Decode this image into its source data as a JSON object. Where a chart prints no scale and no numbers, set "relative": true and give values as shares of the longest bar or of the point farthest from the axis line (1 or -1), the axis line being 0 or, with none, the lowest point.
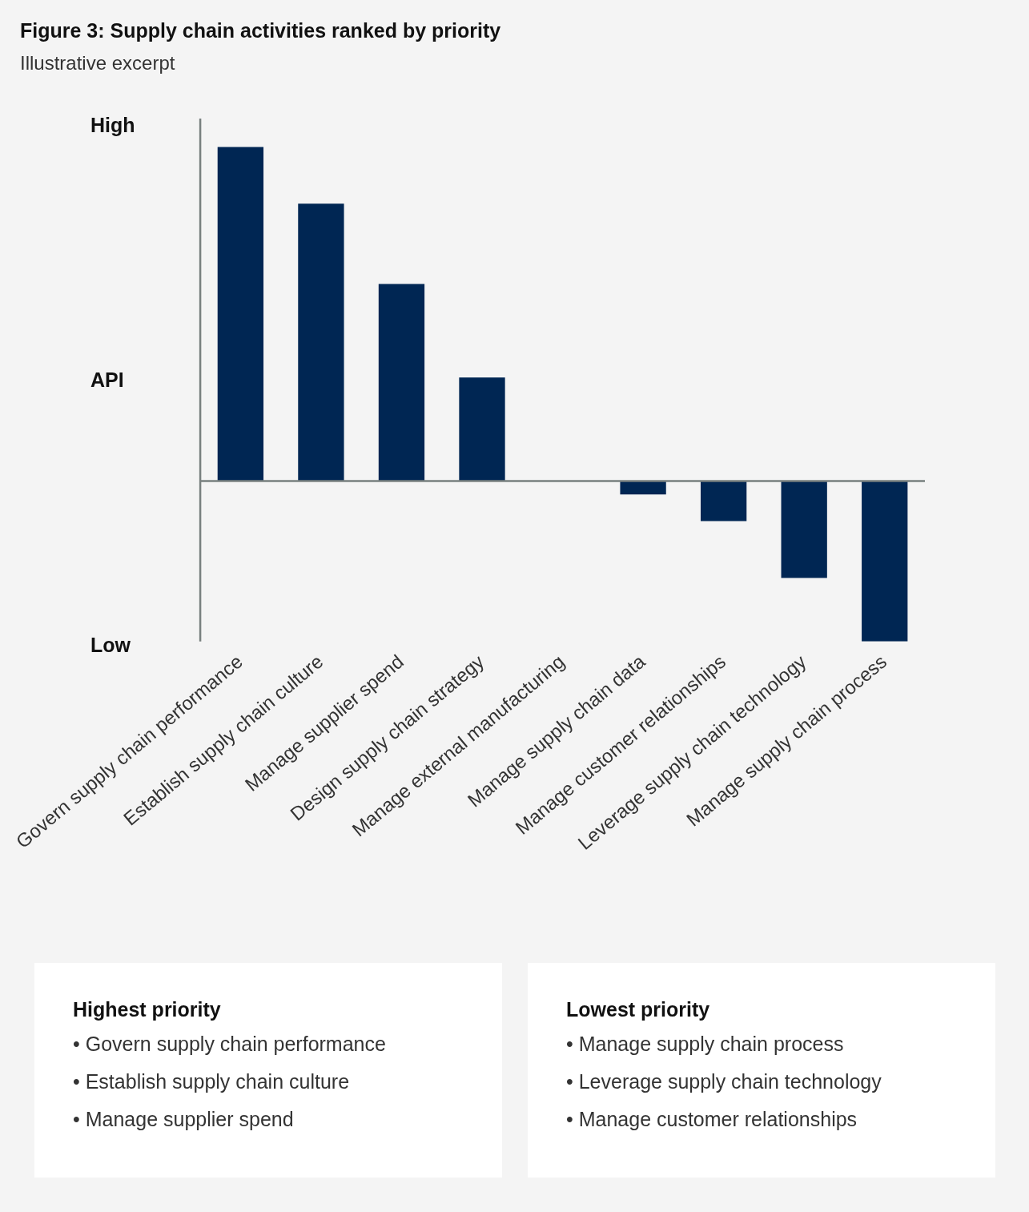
{
  "chart_data": {
    "type": "bar",
    "title": "Figure 3: Supply chain activities ranked by priority",
    "subtitle": "Illustrative excerpt",
    "categories": [
      "Govern supply chain performance",
      "Establish supply chain culture",
      "Manage supplier spend",
      "Design supply chain strategy",
      "Manage external manufacturing",
      "Manage supply chain data",
      "Manage customer relationships",
      "Leverage supply chain technology",
      "Manage supply chain process"
    ],
    "values": [
      1,
      0.83,
      0.59,
      0.31,
      0,
      -0.04,
      -0.12,
      -0.29,
      -0.48
    ],
    "color": "#002653",
    "relative": true,
    "annotations": [
      "High",
      "API",
      "Low",
      "Highest priority",
      "• Govern supply chain performance",
      "• Establish supply chain culture",
      "• Manage supplier spend",
      "Lowest priority",
      "• Manage supply chain process",
      "• Leverage supply chain technology",
      "• Manage customer relationships"
    ]
  }
}
